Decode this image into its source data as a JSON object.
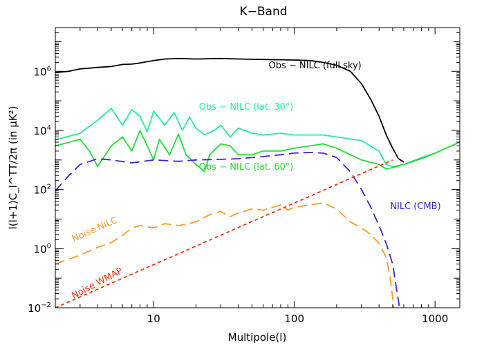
{
  "chart_data": {
    "type": "line",
    "title": "K−Band",
    "xlabel": "Multipole(l)",
    "ylabel": "l(l+1)C_l^TT/2π (in μK²)",
    "xscale": "log",
    "yscale": "log",
    "xlim": [
      2,
      1500
    ],
    "ylim": [
      0.01,
      30000000
    ],
    "x_ticks": [
      {
        "value": 10,
        "label": "10"
      },
      {
        "value": 100,
        "label": "100"
      },
      {
        "value": 1000,
        "label": "1000"
      }
    ],
    "y_ticks": [
      {
        "value": 0.01,
        "base": "10",
        "exp": "−2"
      },
      {
        "value": 1,
        "base": "10",
        "exp": "0"
      },
      {
        "value": 100,
        "base": "10",
        "exp": "2"
      },
      {
        "value": 10000,
        "base": "10",
        "exp": "4"
      },
      {
        "value": 1000000,
        "base": "10",
        "exp": "6"
      }
    ],
    "series": [
      {
        "key": "obs_full",
        "color": "#000000",
        "dash": "solid",
        "points": [
          [
            2,
            900000
          ],
          [
            2.5,
            1000000
          ],
          [
            3,
            1200000
          ],
          [
            4,
            1350000
          ],
          [
            5,
            1450000
          ],
          [
            6,
            1700000
          ],
          [
            7,
            1750000
          ],
          [
            8,
            1900000
          ],
          [
            10,
            2300000
          ],
          [
            12,
            2600000
          ],
          [
            15,
            2700000
          ],
          [
            20,
            2600000
          ],
          [
            30,
            2700000
          ],
          [
            40,
            2600000
          ],
          [
            60,
            2500000
          ],
          [
            80,
            2450000
          ],
          [
            100,
            2400000
          ],
          [
            130,
            2300000
          ],
          [
            160,
            2000000
          ],
          [
            200,
            1600000
          ],
          [
            250,
            1000000
          ],
          [
            300,
            380000
          ],
          [
            350,
            110000
          ],
          [
            400,
            30000
          ],
          [
            450,
            7000
          ],
          [
            500,
            2500
          ],
          [
            550,
            1100
          ],
          [
            600,
            850
          ]
        ]
      },
      {
        "key": "obs_lat30",
        "color": "#22ee99",
        "dash": "solid",
        "points": [
          [
            2,
            4800
          ],
          [
            3,
            8000
          ],
          [
            4,
            22000
          ],
          [
            5,
            55000
          ],
          [
            6,
            15000
          ],
          [
            7,
            50000
          ],
          [
            8,
            30000
          ],
          [
            9,
            9000
          ],
          [
            10,
            45000
          ],
          [
            12,
            15000
          ],
          [
            14,
            40000
          ],
          [
            16,
            10000
          ],
          [
            18,
            28000
          ],
          [
            20,
            12000
          ],
          [
            23,
            7000
          ],
          [
            27,
            10000
          ],
          [
            30,
            15000
          ],
          [
            35,
            6000
          ],
          [
            40,
            12000
          ],
          [
            50,
            8000
          ],
          [
            60,
            7000
          ],
          [
            80,
            8000
          ],
          [
            100,
            7000
          ],
          [
            130,
            7000
          ],
          [
            160,
            7000
          ],
          [
            200,
            6000
          ],
          [
            300,
            4500
          ],
          [
            400,
            2000
          ],
          [
            450,
            700
          ],
          [
            500,
            600
          ],
          [
            600,
            700
          ],
          [
            800,
            1200
          ],
          [
            1000,
            1700
          ],
          [
            1500,
            4000
          ]
        ]
      },
      {
        "key": "obs_lat60",
        "color": "#22dd33",
        "dash": "solid",
        "points": [
          [
            2,
            3000
          ],
          [
            3,
            5000
          ],
          [
            3.5,
            2000
          ],
          [
            4,
            600
          ],
          [
            5,
            3000
          ],
          [
            6,
            6000
          ],
          [
            7,
            2000
          ],
          [
            8,
            10000
          ],
          [
            9,
            3000
          ],
          [
            10,
            1000
          ],
          [
            11,
            5000
          ],
          [
            13,
            1500
          ],
          [
            15,
            7500
          ],
          [
            17,
            1500
          ],
          [
            20,
            700
          ],
          [
            23,
            400
          ],
          [
            25,
            1500
          ],
          [
            30,
            3500
          ],
          [
            35,
            3000
          ],
          [
            40,
            1500
          ],
          [
            50,
            1500
          ],
          [
            60,
            2000
          ],
          [
            80,
            2000
          ],
          [
            100,
            2500
          ],
          [
            130,
            3000
          ],
          [
            160,
            3500
          ],
          [
            200,
            2500
          ],
          [
            300,
            1000
          ],
          [
            400,
            700
          ],
          [
            450,
            500
          ],
          [
            500,
            550
          ],
          [
            600,
            700
          ],
          [
            800,
            1100
          ],
          [
            1000,
            1700
          ],
          [
            1500,
            4000
          ]
        ]
      },
      {
        "key": "nilc_cmb",
        "color": "#4422cc",
        "dash": "long",
        "points": [
          [
            2,
            90
          ],
          [
            2.5,
            300
          ],
          [
            3,
            700
          ],
          [
            4,
            1100
          ],
          [
            5,
            1000
          ],
          [
            7,
            800
          ],
          [
            10,
            1000
          ],
          [
            15,
            900
          ],
          [
            20,
            1000
          ],
          [
            30,
            1050
          ],
          [
            40,
            1100
          ],
          [
            60,
            1300
          ],
          [
            80,
            1500
          ],
          [
            100,
            1700
          ],
          [
            130,
            1800
          ],
          [
            160,
            1700
          ],
          [
            200,
            1200
          ],
          [
            250,
            400
          ],
          [
            300,
            100
          ],
          [
            350,
            25
          ],
          [
            400,
            6
          ],
          [
            450,
            1.5
          ],
          [
            500,
            0.3
          ],
          [
            530,
            0.05
          ],
          [
            560,
            0.01
          ]
        ]
      },
      {
        "key": "noise_nilc",
        "color": "#ff9922",
        "dash": "long",
        "points": [
          [
            2,
            0.3
          ],
          [
            3,
            0.6
          ],
          [
            4,
            1.1
          ],
          [
            5,
            1.6
          ],
          [
            6,
            2.8
          ],
          [
            7,
            5
          ],
          [
            8,
            6
          ],
          [
            10,
            5
          ],
          [
            12,
            7
          ],
          [
            15,
            6
          ],
          [
            20,
            8
          ],
          [
            25,
            14
          ],
          [
            30,
            18
          ],
          [
            35,
            12
          ],
          [
            40,
            16
          ],
          [
            50,
            22
          ],
          [
            60,
            20
          ],
          [
            80,
            30
          ],
          [
            90,
            20
          ],
          [
            100,
            25
          ],
          [
            130,
            30
          ],
          [
            160,
            35
          ],
          [
            200,
            22
          ],
          [
            250,
            8
          ],
          [
            300,
            5
          ],
          [
            350,
            3
          ],
          [
            400,
            1.5
          ],
          [
            450,
            0.5
          ],
          [
            480,
            0.1
          ],
          [
            510,
            0.01
          ]
        ]
      },
      {
        "key": "noise_wmap",
        "color": "#ee3311",
        "dash": "short",
        "points": [
          [
            2,
            0.01
          ],
          [
            500,
            1000
          ]
        ]
      }
    ],
    "annotations": [
      {
        "text": "Obs − NILC (full sky)",
        "color": "#000000",
        "at": [
          300,
          1250000
        ],
        "anchor": "end",
        "rotate": 0
      },
      {
        "text": "Obs − NILC (lat. 30°)",
        "color": "#22ee99",
        "at": [
          21,
          50000
        ],
        "anchor": "start",
        "rotate": 0
      },
      {
        "text": "Obs − NILC (lat. 60°)",
        "color": "#22dd33",
        "at": [
          21,
          460
        ],
        "anchor": "start",
        "rotate": 0
      },
      {
        "text": "NILC (CMB)",
        "color": "#4422cc",
        "at": [
          480,
          22
        ],
        "anchor": "start",
        "rotate": 0
      },
      {
        "text": "Noise NILC",
        "color": "#ff9922",
        "at": [
          2.7,
          1.7
        ],
        "anchor": "start",
        "rotate": -24
      },
      {
        "text": "Noise WMAP",
        "color": "#ee3311",
        "at": [
          2.7,
          0.02
        ],
        "anchor": "start",
        "rotate": -28
      }
    ]
  }
}
